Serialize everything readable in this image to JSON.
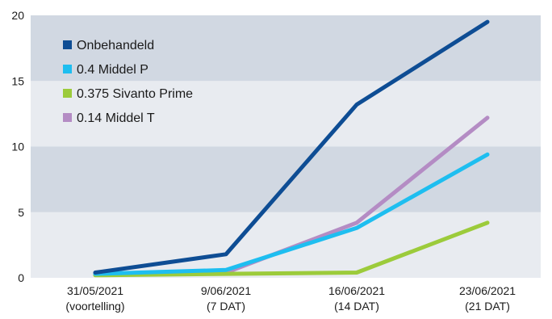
{
  "chart_data": {
    "type": "line",
    "categories": [
      [
        "31/05/2021",
        "(voortelling)"
      ],
      [
        "9/06/2021",
        "(7 DAT)"
      ],
      [
        "16/06/2021",
        "(14 DAT)"
      ],
      [
        "23/06/2021",
        "(21 DAT)"
      ]
    ],
    "yticks": [
      "0",
      "5",
      "10",
      "15",
      "20"
    ],
    "ylim": [
      0,
      20
    ],
    "band_colors": [
      "#e8ebf0",
      "#d1d8e2"
    ],
    "legend_placement": "top-left",
    "series": [
      {
        "name": "Onbehandeld",
        "color": "#0e4d94",
        "values": [
          0.4,
          1.8,
          13.2,
          19.5
        ]
      },
      {
        "name": "0.4 Middel P",
        "color": "#1ebef0",
        "values": [
          0.3,
          0.6,
          3.8,
          9.4
        ]
      },
      {
        "name": "0.375 Sivanto Prime",
        "color": "#9ccb3b",
        "values": [
          0.2,
          0.3,
          0.4,
          4.2
        ]
      },
      {
        "name": "0.14 Middel T",
        "color": "#b48cc4",
        "values": [
          0.3,
          0.4,
          4.2,
          12.2
        ]
      }
    ]
  }
}
